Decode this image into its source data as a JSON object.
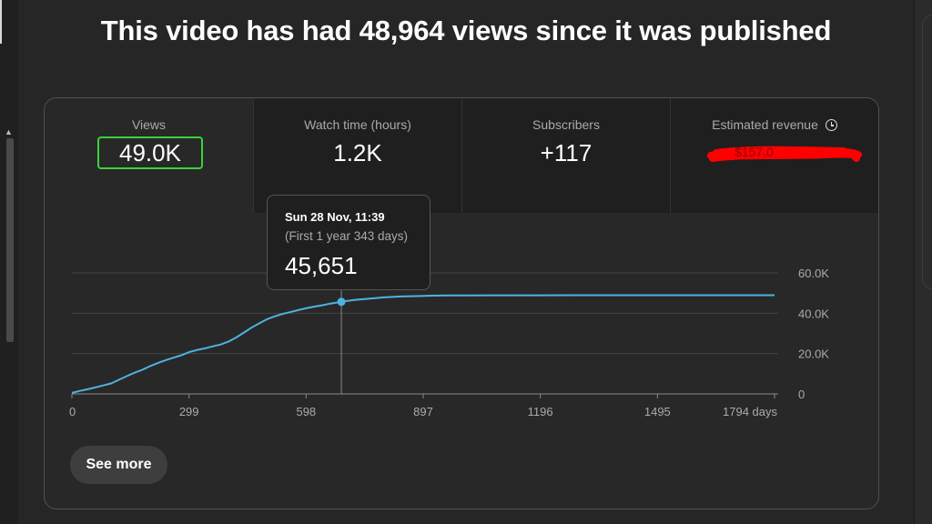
{
  "headline": "This video has had 48,964 views since it was published",
  "stats": [
    {
      "label": "Views",
      "value": "49.0K"
    },
    {
      "label": "Watch time (hours)",
      "value": "1.2K"
    },
    {
      "label": "Subscribers",
      "value": "+117"
    },
    {
      "label": "Estimated revenue",
      "value": "",
      "icon": "clock-icon",
      "redacted": true
    }
  ],
  "tooltip": {
    "date": "Sun 28 Nov, 11:39",
    "period": "(First 1 year 343 days)",
    "value": "45,651"
  },
  "see_more_label": "See more",
  "colors": {
    "line": "#4eb3e0",
    "highlight": "#3bd13b",
    "redaction": "#ff0000"
  },
  "chart_data": {
    "type": "line",
    "title": "",
    "xlabel": "",
    "ylabel": "",
    "x_ticks": [
      "0",
      "299",
      "598",
      "897",
      "1196",
      "1495",
      "1794 days"
    ],
    "y_ticks": [
      "0",
      "20.0K",
      "40.0K",
      "60.0K"
    ],
    "xlim": [
      0,
      1794
    ],
    "ylim": [
      0,
      60000
    ],
    "grid": true,
    "series": [
      {
        "x": [
          0,
          20,
          40,
          60,
          80,
          100,
          120,
          140,
          160,
          180,
          200,
          220,
          240,
          260,
          280,
          300,
          320,
          340,
          360,
          380,
          400,
          420,
          440,
          460,
          480,
          500,
          520,
          540,
          560,
          580,
          600,
          620,
          640,
          660,
          688,
          720,
          760,
          800,
          840,
          880,
          920,
          960,
          1000,
          1100,
          1200,
          1300,
          1400,
          1500,
          1600,
          1700,
          1794
        ],
        "y": [
          500,
          1500,
          2300,
          3200,
          4200,
          5200,
          7000,
          8800,
          10500,
          12000,
          13800,
          15400,
          16800,
          18000,
          19200,
          20800,
          21800,
          22600,
          23600,
          24500,
          26000,
          28000,
          30500,
          33000,
          35200,
          37200,
          38600,
          39800,
          40700,
          41700,
          42600,
          43300,
          44000,
          44800,
          45651,
          46600,
          47300,
          47900,
          48300,
          48500,
          48700,
          48800,
          48850,
          48900,
          48920,
          48940,
          48950,
          48960,
          48962,
          48963,
          48964
        ]
      }
    ],
    "highlight": {
      "x": 688,
      "y": 45651
    }
  }
}
